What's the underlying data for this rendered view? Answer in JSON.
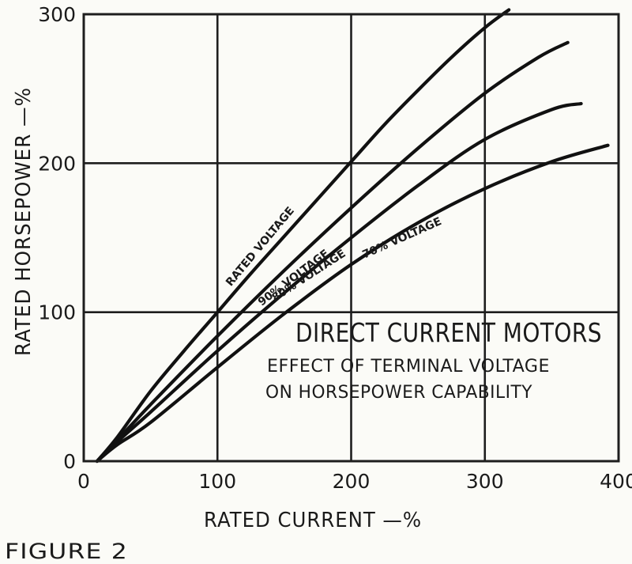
{
  "chart_data": {
    "type": "line",
    "title": "DIRECT CURRENT MOTORS",
    "subtitle_lines": [
      "EFFECT OF TERMINAL VOLTAGE",
      "ON HORSEPOWER CAPABILITY"
    ],
    "xlabel": "RATED  CURRENT —%",
    "ylabel": "RATED  HORSEPOWER —%",
    "xlim": [
      0,
      400
    ],
    "ylim": [
      0,
      300
    ],
    "x_ticks": [
      0,
      100,
      200,
      300,
      400
    ],
    "y_ticks": [
      0,
      100,
      200,
      300
    ],
    "grid": true,
    "series": [
      {
        "name": "RATED VOLTAGE",
        "x": [
          10,
          25,
          50,
          75,
          100,
          125,
          150,
          175,
          200,
          225,
          250,
          275,
          300,
          318
        ],
        "y": [
          0,
          16,
          47,
          74,
          100,
          126,
          151,
          176,
          201,
          226,
          249,
          271,
          291,
          303
        ]
      },
      {
        "name": "90% VOLTAGE",
        "x": [
          10,
          25,
          50,
          100,
          150,
          200,
          250,
          300,
          340,
          362
        ],
        "y": [
          0,
          14,
          38,
          84,
          128,
          170,
          210,
          247,
          271,
          281
        ]
      },
      {
        "name": "80% VOLTAGE",
        "x": [
          10,
          25,
          50,
          100,
          150,
          200,
          250,
          300,
          350,
          372
        ],
        "y": [
          0,
          13,
          33,
          74,
          113,
          150,
          185,
          216,
          236,
          240
        ]
      },
      {
        "name": "70% VOLTAGE",
        "x": [
          10,
          25,
          50,
          100,
          150,
          200,
          250,
          300,
          350,
          392
        ],
        "y": [
          0,
          11,
          26,
          63,
          99,
          132,
          160,
          183,
          201,
          212
        ]
      }
    ]
  },
  "caption": "FIGURE 2"
}
